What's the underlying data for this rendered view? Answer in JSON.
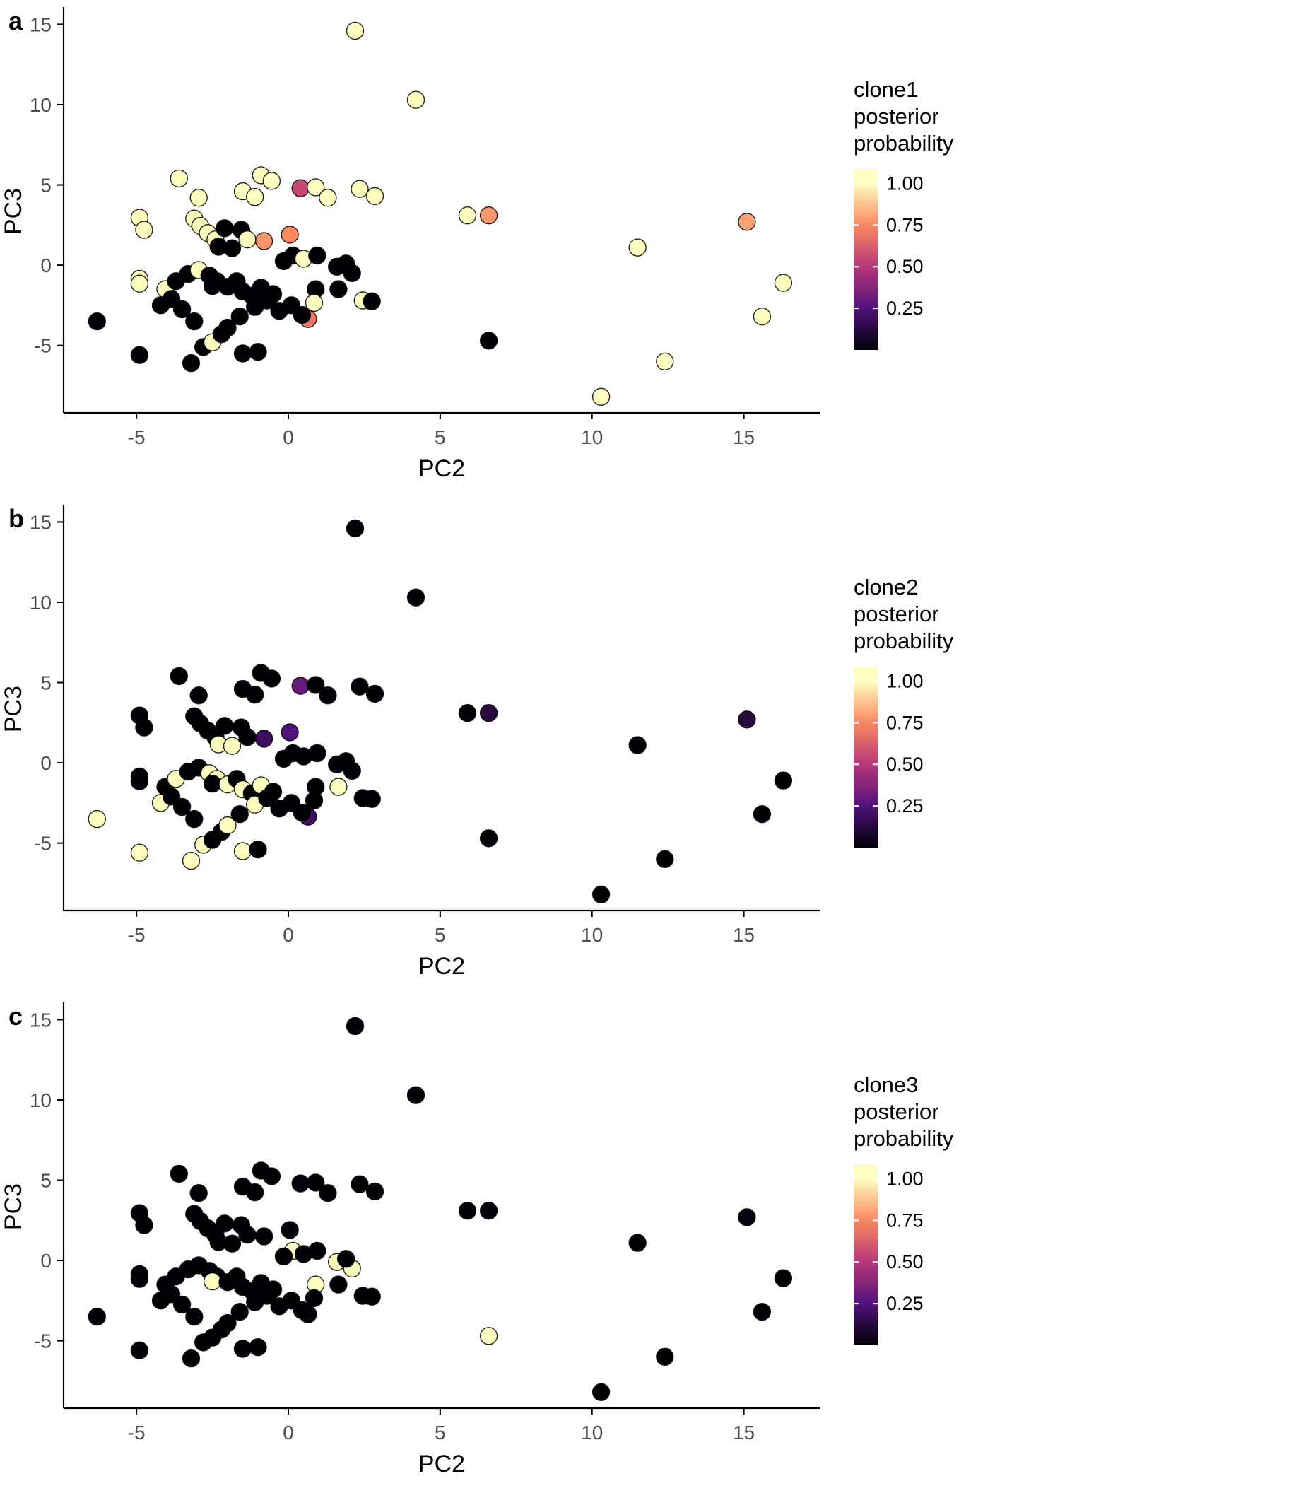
{
  "figure": {
    "background": "#ffffff"
  },
  "axes": {
    "xlabel": "PC2",
    "ylabel": "PC3",
    "x_tick_values": [
      -5,
      0,
      5,
      10,
      15
    ],
    "x_tick_labels": [
      "-5",
      "0",
      "5",
      "10",
      "15"
    ],
    "y_tick_values": [
      -5,
      0,
      5,
      10,
      15
    ],
    "y_tick_labels": [
      "-5",
      "0",
      "5",
      "10",
      "15"
    ],
    "tick_color": "#4d4d4d",
    "axis_color": "#000000"
  },
  "legend": {
    "tick_values": [
      1.0,
      0.75,
      0.5,
      0.25
    ],
    "tick_labels": [
      "1.00",
      "0.75",
      "0.50",
      "0.25"
    ]
  },
  "colormap": {
    "name": "magma",
    "stops": [
      [
        0.0,
        "#000004"
      ],
      [
        0.25,
        "#51127c"
      ],
      [
        0.5,
        "#b73779"
      ],
      [
        0.75,
        "#fb8861"
      ],
      [
        1.0,
        "#fcfdbf"
      ]
    ]
  },
  "panels": [
    {
      "letter": "a",
      "clone": "clone1",
      "legend_title_lines": [
        "clone1",
        "posterior",
        "probability"
      ],
      "prob_key": "p1"
    },
    {
      "letter": "b",
      "clone": "clone2",
      "legend_title_lines": [
        "clone2",
        "posterior",
        "probability"
      ],
      "prob_key": "p2"
    },
    {
      "letter": "c",
      "clone": "clone3",
      "legend_title_lines": [
        "clone3",
        "posterior",
        "probability"
      ],
      "prob_key": "p3"
    }
  ],
  "chart_data": {
    "type": "scatter",
    "title": "",
    "xlabel": "PC2",
    "ylabel": "PC3",
    "xlim": [
      -7.4,
      17.5
    ],
    "ylim": [
      -9.2,
      15.9
    ],
    "grid": false,
    "legend_position": "right",
    "series_note": "Same 82 cells plotted in all three panels; color = posterior probability of clone membership (p1=clone1, p2=clone2, p3=clone3), magma colormap 0-1.",
    "points": [
      {
        "x": 2.2,
        "y": 14.6,
        "p1": 1.0,
        "p2": 0.0,
        "p3": 0.0
      },
      {
        "x": 4.2,
        "y": 10.3,
        "p1": 1.0,
        "p2": 0.0,
        "p3": 0.0
      },
      {
        "x": -3.6,
        "y": 5.4,
        "p1": 1.0,
        "p2": 0.0,
        "p3": 0.0
      },
      {
        "x": -0.9,
        "y": 5.6,
        "p1": 1.0,
        "p2": 0.0,
        "p3": 0.0
      },
      {
        "x": -0.55,
        "y": 5.25,
        "p1": 1.0,
        "p2": 0.0,
        "p3": 0.0
      },
      {
        "x": -1.5,
        "y": 4.6,
        "p1": 1.0,
        "p2": 0.0,
        "p3": 0.0
      },
      {
        "x": -1.1,
        "y": 4.25,
        "p1": 1.0,
        "p2": 0.0,
        "p3": 0.0
      },
      {
        "x": 0.4,
        "y": 4.8,
        "p1": 0.55,
        "p2": 0.3,
        "p3": 0.02
      },
      {
        "x": 0.9,
        "y": 4.85,
        "p1": 1.0,
        "p2": 0.0,
        "p3": 0.0
      },
      {
        "x": 1.3,
        "y": 4.2,
        "p1": 1.0,
        "p2": 0.0,
        "p3": 0.0
      },
      {
        "x": 2.35,
        "y": 4.75,
        "p1": 1.0,
        "p2": 0.0,
        "p3": 0.0
      },
      {
        "x": 2.85,
        "y": 4.3,
        "p1": 1.0,
        "p2": 0.0,
        "p3": 0.0
      },
      {
        "x": -2.95,
        "y": 4.2,
        "p1": 1.0,
        "p2": 0.0,
        "p3": 0.0
      },
      {
        "x": -4.9,
        "y": 2.95,
        "p1": 1.0,
        "p2": 0.0,
        "p3": 0.0
      },
      {
        "x": -4.75,
        "y": 2.2,
        "p1": 1.0,
        "p2": 0.0,
        "p3": 0.0
      },
      {
        "x": -3.1,
        "y": 2.9,
        "p1": 1.0,
        "p2": 0.0,
        "p3": 0.0
      },
      {
        "x": -2.9,
        "y": 2.45,
        "p1": 1.0,
        "p2": 0.0,
        "p3": 0.0
      },
      {
        "x": -2.65,
        "y": 2.0,
        "p1": 1.0,
        "p2": 0.0,
        "p3": 0.0
      },
      {
        "x": -2.4,
        "y": 1.6,
        "p1": 1.0,
        "p2": 0.0,
        "p3": 0.0
      },
      {
        "x": -2.1,
        "y": 2.3,
        "p1": 0.0,
        "p2": 0.0,
        "p3": 0.0
      },
      {
        "x": -1.55,
        "y": 2.2,
        "p1": 0.0,
        "p2": 0.0,
        "p3": 0.0
      },
      {
        "x": -1.35,
        "y": 1.6,
        "p1": 1.0,
        "p2": 0.0,
        "p3": 0.0
      },
      {
        "x": -0.8,
        "y": 1.5,
        "p1": 0.78,
        "p2": 0.2,
        "p3": 0.01
      },
      {
        "x": 0.05,
        "y": 1.9,
        "p1": 0.75,
        "p2": 0.25,
        "p3": 0.01
      },
      {
        "x": -2.3,
        "y": 1.15,
        "p1": 0.0,
        "p2": 1.0,
        "p3": 0.0
      },
      {
        "x": -1.85,
        "y": 1.05,
        "p1": 0.0,
        "p2": 1.0,
        "p3": 0.0
      },
      {
        "x": 5.9,
        "y": 3.1,
        "p1": 1.0,
        "p2": 0.0,
        "p3": 0.0
      },
      {
        "x": 6.6,
        "y": 3.1,
        "p1": 0.78,
        "p2": 0.12,
        "p3": 0.02
      },
      {
        "x": 15.1,
        "y": 2.7,
        "p1": 0.8,
        "p2": 0.12,
        "p3": 0.02
      },
      {
        "x": 11.5,
        "y": 1.1,
        "p1": 1.0,
        "p2": 0.0,
        "p3": 0.0
      },
      {
        "x": 0.15,
        "y": 0.6,
        "p1": 0.0,
        "p2": 0.0,
        "p3": 1.0
      },
      {
        "x": 0.5,
        "y": 0.4,
        "p1": 1.0,
        "p2": 0.0,
        "p3": 0.0
      },
      {
        "x": -0.15,
        "y": 0.25,
        "p1": 0.0,
        "p2": 0.0,
        "p3": 0.0
      },
      {
        "x": 1.6,
        "y": -0.1,
        "p1": 0.0,
        "p2": 0.0,
        "p3": 1.0
      },
      {
        "x": 2.1,
        "y": -0.5,
        "p1": 0.0,
        "p2": 0.0,
        "p3": 1.0
      },
      {
        "x": -4.9,
        "y": -0.85,
        "p1": 1.0,
        "p2": 0.0,
        "p3": 0.0
      },
      {
        "x": -4.9,
        "y": -1.15,
        "p1": 1.0,
        "p2": 0.0,
        "p3": 0.0
      },
      {
        "x": -4.05,
        "y": -1.5,
        "p1": 1.0,
        "p2": 0.0,
        "p3": 0.0
      },
      {
        "x": -3.7,
        "y": -1.0,
        "p1": 0.0,
        "p2": 1.0,
        "p3": 0.0
      },
      {
        "x": -3.3,
        "y": -0.55,
        "p1": 0.0,
        "p2": 0.0,
        "p3": 0.0
      },
      {
        "x": -2.95,
        "y": -0.3,
        "p1": 1.0,
        "p2": 0.0,
        "p3": 0.0
      },
      {
        "x": -2.6,
        "y": -0.65,
        "p1": 0.0,
        "p2": 1.0,
        "p3": 0.0
      },
      {
        "x": -2.35,
        "y": -1.0,
        "p1": 0.0,
        "p2": 1.0,
        "p3": 0.0
      },
      {
        "x": -2.5,
        "y": -1.3,
        "p1": 0.0,
        "p2": 0.0,
        "p3": 1.0
      },
      {
        "x": -2.0,
        "y": -1.35,
        "p1": 0.0,
        "p2": 1.0,
        "p3": 0.0
      },
      {
        "x": -1.7,
        "y": -1.0,
        "p1": 0.0,
        "p2": 0.0,
        "p3": 0.0
      },
      {
        "x": -1.5,
        "y": -1.65,
        "p1": 0.0,
        "p2": 1.0,
        "p3": 0.0
      },
      {
        "x": -1.2,
        "y": -1.9,
        "p1": 0.0,
        "p2": 0.0,
        "p3": 0.0
      },
      {
        "x": -0.9,
        "y": -1.4,
        "p1": 0.0,
        "p2": 1.0,
        "p3": 0.0
      },
      {
        "x": -0.5,
        "y": -1.8,
        "p1": 0.0,
        "p2": 0.0,
        "p3": 0.0
      },
      {
        "x": 0.9,
        "y": -1.5,
        "p1": 0.0,
        "p2": 0.0,
        "p3": 1.0
      },
      {
        "x": 0.85,
        "y": -2.35,
        "p1": 1.0,
        "p2": 0.0,
        "p3": 0.0
      },
      {
        "x": 0.65,
        "y": -3.35,
        "p1": 0.7,
        "p2": 0.2,
        "p3": 0.02
      },
      {
        "x": 0.45,
        "y": -3.1,
        "p1": 0.0,
        "p2": 0.0,
        "p3": 0.0
      },
      {
        "x": 2.45,
        "y": -2.2,
        "p1": 1.0,
        "p2": 0.0,
        "p3": 0.0
      },
      {
        "x": 2.75,
        "y": -2.25,
        "p1": 0.0,
        "p2": 0.0,
        "p3": 0.0
      },
      {
        "x": 1.65,
        "y": -1.5,
        "p1": 0.0,
        "p2": 1.0,
        "p3": 0.0
      },
      {
        "x": -6.3,
        "y": -3.5,
        "p1": 0.0,
        "p2": 1.0,
        "p3": 0.0
      },
      {
        "x": -4.9,
        "y": -5.6,
        "p1": 0.0,
        "p2": 1.0,
        "p3": 0.0
      },
      {
        "x": -4.2,
        "y": -2.5,
        "p1": 0.0,
        "p2": 1.0,
        "p3": 0.0
      },
      {
        "x": -3.85,
        "y": -2.1,
        "p1": 0.0,
        "p2": 0.0,
        "p3": 0.0
      },
      {
        "x": -3.5,
        "y": -2.75,
        "p1": 0.0,
        "p2": 0.0,
        "p3": 0.0
      },
      {
        "x": -3.2,
        "y": -6.1,
        "p1": 0.0,
        "p2": 1.0,
        "p3": 0.0
      },
      {
        "x": -2.8,
        "y": -5.1,
        "p1": 0.0,
        "p2": 1.0,
        "p3": 0.0
      },
      {
        "x": -2.5,
        "y": -4.8,
        "p1": 1.0,
        "p2": 0.0,
        "p3": 0.0
      },
      {
        "x": -2.2,
        "y": -4.3,
        "p1": 0.0,
        "p2": 0.0,
        "p3": 0.0
      },
      {
        "x": -1.5,
        "y": -5.5,
        "p1": 0.0,
        "p2": 1.0,
        "p3": 0.0
      },
      {
        "x": -1.0,
        "y": -5.4,
        "p1": 0.0,
        "p2": 0.0,
        "p3": 0.0
      },
      {
        "x": -3.1,
        "y": -3.5,
        "p1": 0.0,
        "p2": 0.0,
        "p3": 0.0
      },
      {
        "x": -2.0,
        "y": -3.9,
        "p1": 0.0,
        "p2": 1.0,
        "p3": 0.0
      },
      {
        "x": -1.6,
        "y": -3.2,
        "p1": 0.0,
        "p2": 0.0,
        "p3": 0.0
      },
      {
        "x": -1.1,
        "y": -2.6,
        "p1": 0.0,
        "p2": 1.0,
        "p3": 0.0
      },
      {
        "x": -0.7,
        "y": -2.2,
        "p1": 0.0,
        "p2": 0.0,
        "p3": 0.0
      },
      {
        "x": -0.3,
        "y": -2.85,
        "p1": 0.0,
        "p2": 0.0,
        "p3": 0.0
      },
      {
        "x": 0.1,
        "y": -2.5,
        "p1": 0.0,
        "p2": 0.0,
        "p3": 0.0
      },
      {
        "x": 6.6,
        "y": -4.7,
        "p1": 0.0,
        "p2": 0.0,
        "p3": 1.0
      },
      {
        "x": 10.3,
        "y": -8.2,
        "p1": 1.0,
        "p2": 0.0,
        "p3": 0.0
      },
      {
        "x": 12.4,
        "y": -6.0,
        "p1": 1.0,
        "p2": 0.0,
        "p3": 0.0
      },
      {
        "x": 15.6,
        "y": -3.2,
        "p1": 1.0,
        "p2": 0.0,
        "p3": 0.0
      },
      {
        "x": 16.3,
        "y": -1.1,
        "p1": 1.0,
        "p2": 0.0,
        "p3": 0.0
      },
      {
        "x": 0.95,
        "y": 0.6,
        "p1": 0.0,
        "p2": 0.0,
        "p3": 0.0
      },
      {
        "x": 1.9,
        "y": 0.1,
        "p1": 0.0,
        "p2": 0.0,
        "p3": 0.0
      }
    ]
  }
}
